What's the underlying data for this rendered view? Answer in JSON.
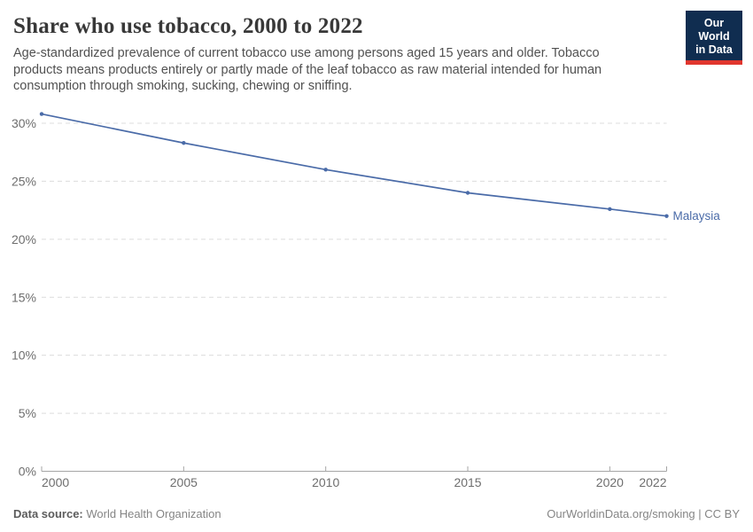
{
  "header": {
    "title": "Share who use tobacco, 2000 to 2022",
    "subtitle": "Age-standardized prevalence of current tobacco use among persons aged 15 years and older. Tobacco products means products entirely or partly made of the leaf tobacco as raw material intended for human consumption through smoking, sucking, chewing or sniffing.",
    "logo": {
      "line1": "Our World",
      "line2": "in Data",
      "bg_color": "#102d50",
      "bar_color": "#e0362e"
    }
  },
  "chart_data": {
    "type": "line",
    "title": "Share who use tobacco, 2000 to 2022",
    "series": [
      {
        "name": "Malaysia",
        "color": "#4a6ba8",
        "x": [
          2000,
          2005,
          2010,
          2015,
          2020,
          2022
        ],
        "values": [
          30.8,
          28.3,
          26.0,
          24.0,
          22.6,
          22.0
        ]
      }
    ],
    "xlabel": "",
    "ylabel": "",
    "x_ticks": [
      2000,
      2005,
      2010,
      2015,
      2020,
      2022
    ],
    "y_ticks": [
      0,
      5,
      10,
      15,
      20,
      25,
      30
    ],
    "y_tick_suffix": "%",
    "xlim": [
      2000,
      2022
    ],
    "ylim": [
      0,
      30.9
    ],
    "grid": "horizontal-dashed",
    "legend_position": "end-of-line-label",
    "entity_label": "Malaysia"
  },
  "footer": {
    "source_label": "Data source:",
    "source_value": "World Health Organization",
    "credit": "OurWorldinData.org/smoking | CC BY"
  }
}
